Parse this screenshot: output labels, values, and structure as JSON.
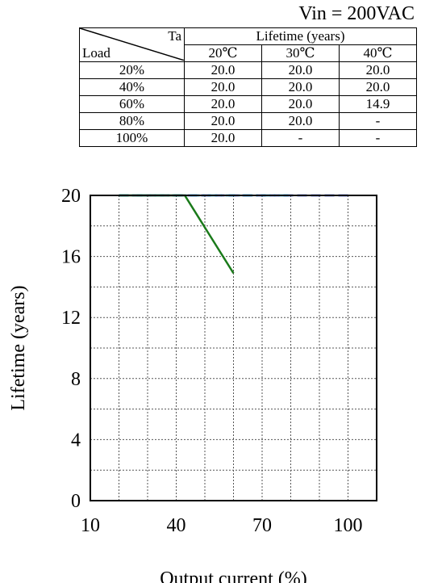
{
  "header": {
    "condition": "Vin = 200VAC"
  },
  "table": {
    "corner_top": "Ta",
    "corner_bottom": "Load",
    "group_header": "Lifetime (years)",
    "temperatures": [
      "20℃",
      "30℃",
      "40℃"
    ],
    "rows": [
      {
        "load": "20%",
        "values": [
          "20.0",
          "20.0",
          "20.0"
        ]
      },
      {
        "load": "40%",
        "values": [
          "20.0",
          "20.0",
          "20.0"
        ]
      },
      {
        "load": "60%",
        "values": [
          "20.0",
          "20.0",
          "14.9"
        ]
      },
      {
        "load": "80%",
        "values": [
          "20.0",
          "20.0",
          "-"
        ]
      },
      {
        "load": "100%",
        "values": [
          "20.0",
          "-",
          "-"
        ]
      }
    ]
  },
  "chart_data": {
    "type": "line",
    "xlabel": "Output current (%)",
    "ylabel": "Lifetime (years)",
    "xlim": [
      10,
      110
    ],
    "ylim": [
      0,
      20
    ],
    "xticks": [
      10,
      40,
      70,
      100
    ],
    "xtick_labels": [
      "10",
      "40",
      "70",
      "100"
    ],
    "yticks": [
      0,
      4,
      8,
      12,
      16,
      20
    ],
    "ytick_labels": [
      "0",
      "4",
      "8",
      "12",
      "16",
      "20"
    ],
    "grid": true,
    "series": [
      {
        "color": "#1f3fd8",
        "style": "dashed",
        "points": [
          [
            20,
            20
          ],
          [
            100,
            20
          ]
        ]
      },
      {
        "color": "#0aa8e0",
        "style": "dashdot",
        "points": [
          [
            20,
            20
          ],
          [
            80,
            20
          ]
        ]
      },
      {
        "color": "#1a7a1a",
        "style": "solid",
        "points": [
          [
            20,
            20
          ],
          [
            43,
            20
          ],
          [
            60,
            14.9
          ]
        ]
      }
    ]
  }
}
